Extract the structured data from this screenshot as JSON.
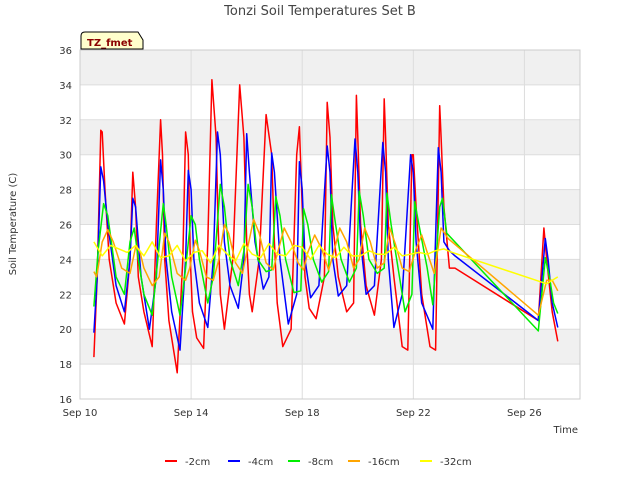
{
  "chart_data": {
    "type": "line",
    "title": "Tonzi Soil Temperatures Set B",
    "xlabel": "Time",
    "ylabel": "Soil Temperature (C)",
    "tag": "TZ_fmet",
    "ylim": [
      16,
      36
    ],
    "yticks": [
      16,
      18,
      20,
      22,
      24,
      26,
      28,
      30,
      32,
      34,
      36
    ],
    "xlim": [
      0,
      18
    ],
    "xticks": [
      {
        "value": 0,
        "label": "Sep 10"
      },
      {
        "value": 4,
        "label": "Sep 14"
      },
      {
        "value": 8,
        "label": "Sep 18"
      },
      {
        "value": 12,
        "label": "Sep 22"
      },
      {
        "value": 16,
        "label": "Sep 26"
      }
    ],
    "grid": true,
    "legend_position": "bottom",
    "series": [
      {
        "name": "-2cm",
        "color": "#ff0000",
        "x": [
          0.5,
          0.62,
          0.75,
          0.8,
          0.9,
          1.05,
          1.3,
          1.6,
          1.8,
          1.9,
          2.0,
          2.1,
          2.3,
          2.6,
          2.75,
          2.9,
          2.97,
          3.05,
          3.2,
          3.5,
          3.7,
          3.8,
          3.9,
          3.97,
          4.05,
          4.2,
          4.45,
          4.6,
          4.75,
          4.9,
          4.97,
          5.05,
          5.2,
          5.5,
          5.75,
          5.9,
          6.0,
          6.1,
          6.2,
          6.45,
          6.7,
          6.9,
          7.0,
          7.1,
          7.3,
          7.6,
          7.8,
          7.9,
          8.0,
          8.1,
          8.25,
          8.5,
          8.8,
          8.9,
          9.0,
          9.1,
          9.3,
          9.6,
          9.85,
          9.95,
          10.0,
          10.1,
          10.3,
          10.6,
          10.85,
          10.95,
          11.0,
          11.1,
          11.3,
          11.6,
          11.8,
          11.95,
          12.0,
          12.1,
          12.3,
          12.6,
          12.8,
          12.95,
          13.0,
          13.1,
          13.3,
          13.5,
          16.5,
          16.7,
          16.8,
          17.0,
          17.2
        ],
        "y": [
          18.4,
          23,
          31.4,
          31.3,
          28,
          24,
          21.5,
          20.3,
          24,
          29,
          27,
          23,
          21,
          19,
          26,
          32,
          30,
          24,
          20.5,
          17.5,
          24,
          31.3,
          30,
          24,
          21,
          19.5,
          18.9,
          25,
          34.3,
          31,
          26,
          22,
          20,
          24,
          34,
          31,
          25,
          22,
          21,
          24,
          32.3,
          30,
          25,
          21.5,
          19,
          20,
          30,
          31.6,
          27,
          23,
          21.2,
          20.6,
          23,
          33,
          31,
          26,
          23,
          21,
          21.5,
          33.4,
          31,
          26,
          22.5,
          20.8,
          24,
          33.2,
          31,
          26,
          23,
          19,
          18.8,
          30,
          30,
          27,
          22,
          19,
          18.8,
          32.8,
          31,
          27,
          23.5,
          23.5,
          20.5,
          25.8,
          24,
          21,
          19.3
        ]
      },
      {
        "name": "-4cm",
        "color": "#0000ff",
        "x": [
          0.5,
          0.62,
          0.75,
          0.85,
          1.0,
          1.3,
          1.6,
          1.8,
          1.9,
          2.0,
          2.2,
          2.5,
          2.75,
          2.9,
          3.0,
          3.1,
          3.3,
          3.6,
          3.8,
          3.9,
          4.0,
          4.1,
          4.3,
          4.6,
          4.8,
          4.95,
          5.05,
          5.2,
          5.4,
          5.7,
          5.9,
          6.0,
          6.1,
          6.3,
          6.6,
          6.8,
          6.9,
          7.0,
          7.2,
          7.5,
          7.8,
          7.9,
          8.0,
          8.1,
          8.3,
          8.6,
          8.9,
          9.0,
          9.1,
          9.3,
          9.6,
          9.9,
          10.0,
          10.1,
          10.3,
          10.6,
          10.9,
          11.0,
          11.1,
          11.3,
          11.6,
          11.9,
          12.0,
          12.1,
          12.3,
          12.7,
          12.9,
          13.0,
          13.1,
          13.3,
          13.5,
          16.5,
          16.75,
          16.85,
          17.0,
          17.2
        ],
        "y": [
          19.8,
          23,
          29.3,
          28.5,
          26,
          22.5,
          21,
          24,
          27.5,
          27,
          23,
          20,
          23,
          29.7,
          28,
          24,
          21,
          18.8,
          24,
          29.1,
          28,
          24,
          21.5,
          20.1,
          24,
          31.3,
          30,
          25,
          22.5,
          21.2,
          24,
          31.2,
          29,
          25,
          22.3,
          23,
          30.1,
          29,
          24,
          20.3,
          22,
          29.6,
          28,
          24,
          21.8,
          22.5,
          30.5,
          29,
          24,
          21.9,
          22.5,
          30.9,
          29,
          25,
          22,
          22.5,
          30.7,
          29,
          24,
          20.1,
          22,
          30,
          29,
          25,
          21.5,
          20,
          30.4,
          29,
          25,
          24.5,
          24.2,
          20.5,
          25.2,
          24,
          21.5,
          20.1
        ]
      },
      {
        "name": "-8cm",
        "color": "#00ee00",
        "x": [
          0.5,
          0.65,
          0.85,
          1.0,
          1.3,
          1.6,
          1.8,
          1.95,
          2.1,
          2.3,
          2.6,
          2.8,
          3.0,
          3.1,
          3.3,
          3.6,
          3.8,
          4.0,
          4.15,
          4.3,
          4.6,
          4.8,
          5.05,
          5.2,
          5.4,
          5.7,
          5.9,
          6.05,
          6.2,
          6.4,
          6.7,
          6.9,
          7.05,
          7.2,
          7.4,
          7.7,
          7.95,
          8.05,
          8.2,
          8.4,
          8.7,
          8.95,
          9.05,
          9.2,
          9.4,
          9.7,
          9.95,
          10.05,
          10.2,
          10.4,
          10.7,
          10.95,
          11.05,
          11.2,
          11.4,
          11.7,
          11.95,
          12.05,
          12.2,
          12.5,
          12.7,
          12.95,
          13.05,
          13.2,
          16.5,
          16.75,
          16.9,
          17.05,
          17.2
        ],
        "y": [
          21.3,
          24.5,
          27.2,
          26.5,
          23,
          22,
          25,
          25.8,
          24,
          22,
          20.8,
          24,
          27.2,
          26,
          23,
          20.8,
          23.5,
          26.5,
          26,
          24,
          21.5,
          23,
          28.3,
          27,
          24,
          22.5,
          24.5,
          28.3,
          27,
          24,
          23.3,
          23.4,
          27.6,
          26.5,
          24,
          22.1,
          22.2,
          26.9,
          26,
          24,
          22.7,
          23.3,
          27.7,
          26,
          24,
          22.7,
          23.5,
          27.9,
          26.5,
          24,
          23.2,
          23.5,
          27.8,
          26,
          24,
          21,
          22,
          27.3,
          26,
          23.5,
          21.4,
          27,
          27.5,
          25.5,
          19.9,
          24.1,
          23,
          21.5,
          20.9
        ]
      },
      {
        "name": "-16cm",
        "color": "#ffa500",
        "x": [
          0.5,
          0.6,
          0.8,
          1.0,
          1.2,
          1.5,
          1.8,
          2.0,
          2.15,
          2.3,
          2.6,
          2.85,
          3.05,
          3.2,
          3.5,
          3.8,
          3.95,
          4.15,
          4.3,
          4.55,
          4.8,
          5.0,
          5.2,
          5.35,
          5.6,
          5.85,
          6.05,
          6.25,
          6.45,
          6.7,
          6.95,
          7.15,
          7.35,
          7.6,
          7.85,
          8.05,
          8.2,
          8.45,
          8.7,
          8.95,
          9.15,
          9.35,
          9.6,
          9.85,
          10.05,
          10.25,
          10.45,
          10.7,
          10.95,
          11.15,
          11.35,
          11.6,
          11.85,
          12.1,
          12.3,
          12.5,
          12.75,
          13.0,
          13.25,
          16.5,
          16.8,
          17.0,
          17.2
        ],
        "y": [
          23.3,
          23,
          25,
          25.7,
          25,
          23.5,
          23.2,
          24.7,
          24.5,
          23.5,
          22.5,
          23,
          25.5,
          25,
          23.2,
          22.8,
          23.5,
          25.1,
          24.5,
          23,
          22.8,
          24,
          26,
          25.5,
          23.8,
          23.2,
          24.8,
          26.3,
          25.5,
          23.8,
          23.4,
          24.6,
          25.8,
          25,
          23.8,
          23.4,
          24.4,
          25.4,
          24.6,
          23.4,
          24.5,
          25.8,
          25,
          23.5,
          24,
          25.8,
          25,
          23.5,
          23.8,
          25.8,
          24.9,
          23.5,
          23.3,
          24.6,
          25.4,
          24.4,
          23.2,
          25.8,
          25.2,
          20.8,
          22.8,
          22.8,
          22.2
        ]
      },
      {
        "name": "-32cm",
        "color": "#ffff00",
        "x": [
          0.5,
          0.8,
          1.1,
          1.4,
          1.7,
          2.0,
          2.3,
          2.6,
          2.9,
          3.2,
          3.5,
          3.8,
          4.1,
          4.4,
          4.7,
          5.0,
          5.3,
          5.6,
          5.9,
          6.2,
          6.5,
          6.8,
          7.1,
          7.4,
          7.7,
          8.0,
          8.3,
          8.6,
          8.9,
          9.2,
          9.5,
          9.8,
          10.1,
          10.4,
          10.7,
          11.0,
          11.3,
          11.6,
          11.9,
          12.2,
          12.5,
          12.8,
          13.1,
          13.4,
          16.8,
          17.2
        ],
        "y": [
          25,
          24.2,
          24.8,
          24.6,
          24.4,
          24.8,
          24.2,
          25,
          24.1,
          24.2,
          24.8,
          23.9,
          24.4,
          24.5,
          23.8,
          24.8,
          24.3,
          23.9,
          24.9,
          24.3,
          24.1,
          24.9,
          24.3,
          24.2,
          24.8,
          24.7,
          24,
          24.8,
          24.3,
          24.1,
          24.7,
          24.2,
          24.2,
          24.5,
          24.3,
          24.3,
          24.7,
          24.2,
          24.3,
          24.4,
          24.3,
          24.5,
          24.6,
          24.4,
          22.6,
          23
        ]
      }
    ]
  }
}
